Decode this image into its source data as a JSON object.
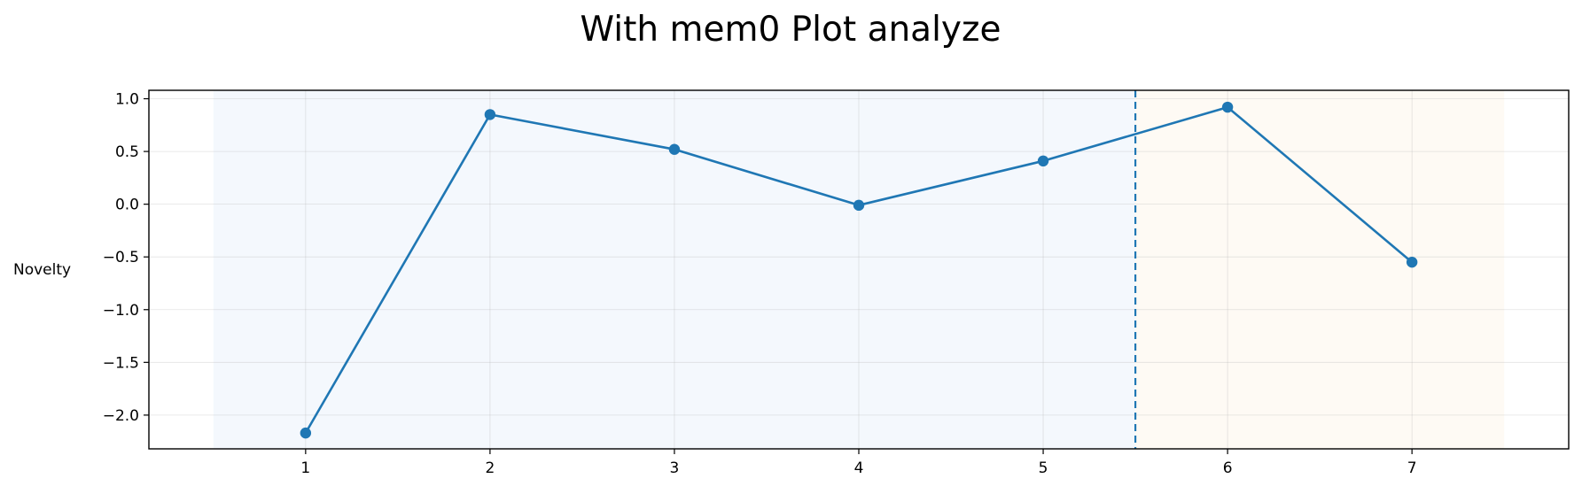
{
  "chart_data": {
    "type": "line",
    "title": "With mem0 Plot analyze",
    "xlabel": "",
    "ylabel": "Novelty",
    "x": [
      1,
      2,
      3,
      4,
      5,
      6,
      7
    ],
    "series": [
      {
        "values": [
          -2.17,
          0.85,
          0.52,
          -0.01,
          0.41,
          0.92,
          -0.55
        ],
        "color": "#1f77b4",
        "marker": "circle"
      }
    ],
    "xticks": [
      "1",
      "2",
      "3",
      "4",
      "5",
      "6",
      "7"
    ],
    "yticks": [
      "1.0",
      "0.5",
      "0.0",
      "−0.5",
      "−1.0",
      "−1.5",
      "−2.0"
    ],
    "ytick_values": [
      1.0,
      0.5,
      0.0,
      -0.5,
      -1.0,
      -1.5,
      -2.0
    ],
    "xlim": [
      0.15,
      7.85
    ],
    "ylim": [
      -2.32,
      1.08
    ],
    "grid": true,
    "regions": [
      {
        "x_start": 0.5,
        "x_end": 5.5,
        "color": "#dce8f7"
      },
      {
        "x_start": 5.5,
        "x_end": 7.5,
        "color": "#fdeedb"
      }
    ],
    "vline": {
      "x": 5.5,
      "color": "#1f77b4",
      "style": "dashed"
    }
  }
}
